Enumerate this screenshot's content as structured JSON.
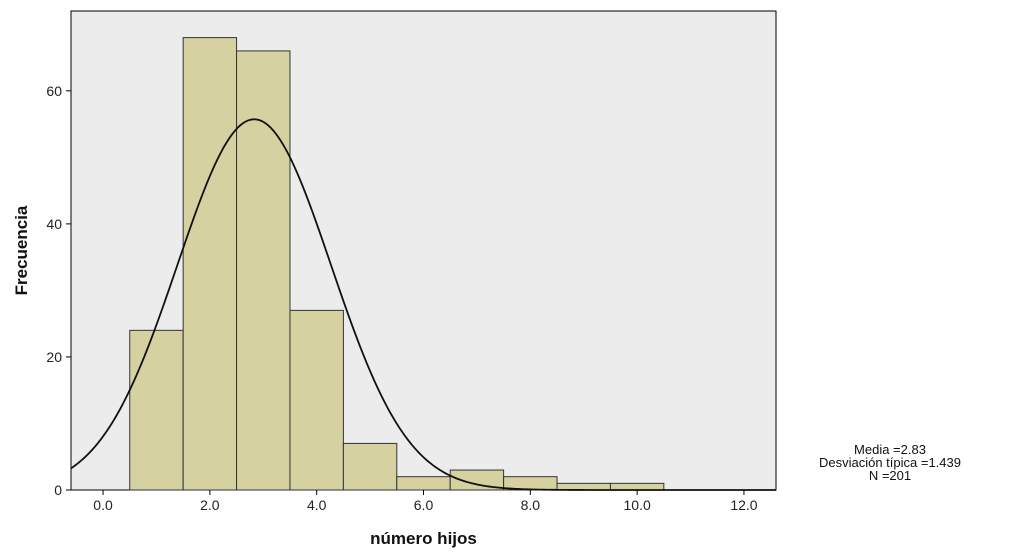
{
  "chart_data": {
    "type": "bar",
    "subtype": "histogram-with-normal-curve",
    "xlabel": "número hijos",
    "ylabel": "Frecuencia",
    "xlim": [
      -0.6,
      12.6
    ],
    "ylim": [
      0,
      72
    ],
    "xticks": [
      "0.0",
      "2.0",
      "4.0",
      "6.0",
      "8.0",
      "10.0",
      "12.0"
    ],
    "xtick_values": [
      0,
      2,
      4,
      6,
      8,
      10,
      12
    ],
    "yticks": [
      "0",
      "20",
      "40",
      "60"
    ],
    "ytick_values": [
      0,
      20,
      40,
      60
    ],
    "bin_width": 1,
    "bins": [
      {
        "x": 1,
        "count": 24
      },
      {
        "x": 2,
        "count": 68
      },
      {
        "x": 3,
        "count": 66
      },
      {
        "x": 4,
        "count": 27
      },
      {
        "x": 5,
        "count": 7
      },
      {
        "x": 6,
        "count": 2
      },
      {
        "x": 7,
        "count": 3
      },
      {
        "x": 8,
        "count": 2
      },
      {
        "x": 9,
        "count": 1
      },
      {
        "x": 10,
        "count": 1
      }
    ],
    "normal_curve": {
      "mean": 2.83,
      "sd": 1.439,
      "n": 201
    },
    "colors": {
      "plot_bg": "#ececec",
      "bar_fill": "#d6d1a0",
      "bar_stroke": "#333333",
      "curve": "#111111"
    }
  },
  "stats": {
    "mean_text": "Media =2.83",
    "sd_text": "Desviación típica =1.439",
    "n_text": "N =201"
  }
}
